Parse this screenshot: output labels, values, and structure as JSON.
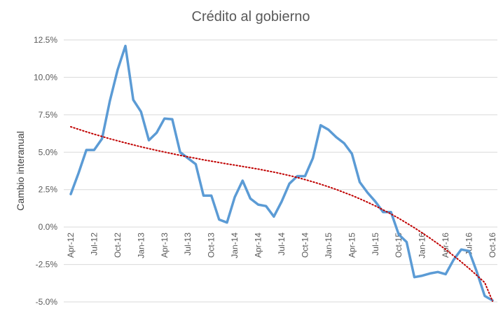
{
  "chart_data": {
    "type": "line",
    "title": "Crédito al gobierno",
    "xlabel": "",
    "ylabel": "Cambio interanual",
    "ylim": [
      -5,
      12.5
    ],
    "yticks": [
      -5,
      -2.5,
      0,
      2.5,
      5,
      7.5,
      10,
      12.5
    ],
    "ytick_labels": [
      "-5.0%",
      "-2.5%",
      "0.0%",
      "2.5%",
      "5.0%",
      "7.5%",
      "10.0%",
      "12.5%"
    ],
    "xtick_labels": [
      "Apr-12",
      "Jul-12",
      "Oct-12",
      "Jan-13",
      "Apr-13",
      "Jul-13",
      "Oct-13",
      "Jan-14",
      "Apr-14",
      "Jul-14",
      "Oct-14",
      "Jan-15",
      "Apr-15",
      "Jul-15",
      "Oct-15",
      "Jan-16",
      "Apr-16",
      "Jul-16",
      "Oct-16"
    ],
    "grid": true,
    "legend": "none",
    "series": [
      {
        "style": "solid",
        "color": "#5b9bd5",
        "values": [
          2.2,
          3.6,
          5.15,
          5.15,
          5.9,
          8.4,
          10.5,
          12.1,
          8.5,
          7.7,
          5.8,
          6.3,
          7.25,
          7.2,
          5.0,
          4.6,
          4.2,
          2.1,
          2.1,
          0.5,
          0.3,
          2.0,
          3.1,
          1.9,
          1.5,
          1.4,
          0.7,
          1.7,
          2.9,
          3.4,
          3.4,
          4.6,
          6.8,
          6.5,
          6.0,
          5.6,
          4.9,
          3.0,
          2.3,
          1.7,
          1.0,
          1.0,
          -0.5,
          -1.0,
          -3.35,
          -3.25,
          -3.1,
          -3.0,
          -3.15,
          -2.2,
          -1.5,
          -1.6,
          -3.0,
          -4.6,
          -4.9
        ]
      },
      {
        "style": "dotted",
        "color": "#c00000",
        "values": [
          6.7,
          6.53,
          6.36,
          6.2,
          6.05,
          5.9,
          5.76,
          5.62,
          5.49,
          5.36,
          5.24,
          5.12,
          5.01,
          4.9,
          4.79,
          4.69,
          4.59,
          4.49,
          4.4,
          4.31,
          4.22,
          4.14,
          4.05,
          3.96,
          3.87,
          3.77,
          3.67,
          3.56,
          3.44,
          3.31,
          3.17,
          3.02,
          2.86,
          2.69,
          2.51,
          2.31,
          2.11,
          1.89,
          1.66,
          1.41,
          1.15,
          0.87,
          0.58,
          0.27,
          -0.05,
          -0.39,
          -0.74,
          -1.11,
          -1.5,
          -1.91,
          -2.33,
          -2.77,
          -3.23,
          -3.71,
          -4.95
        ]
      }
    ],
    "colors": {
      "grid": "#d9d9d9",
      "text": "#595959"
    }
  }
}
